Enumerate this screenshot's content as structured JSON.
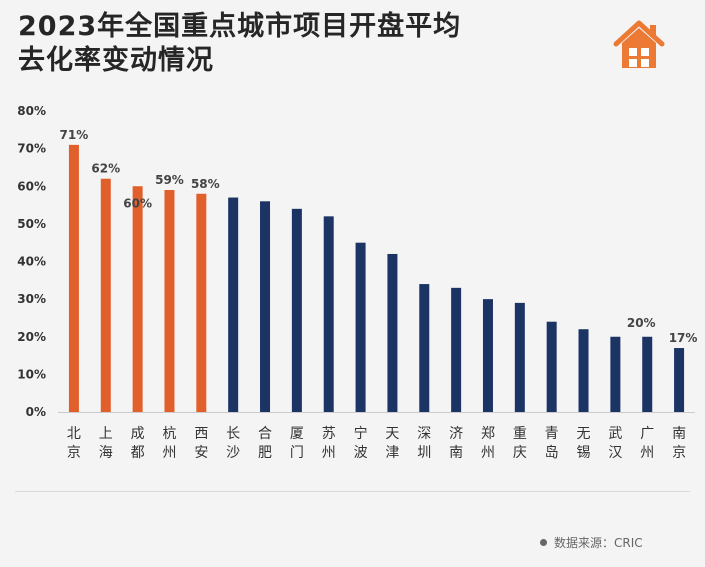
{
  "header": {
    "title_line1": "2023年全国重点城市项目开盘平均",
    "title_line2": "去化率变动情况"
  },
  "footer": {
    "source_label": "数据来源：CRIC"
  },
  "logo": {
    "icon": "house-icon",
    "color": "#ec7a34"
  },
  "colors": {
    "highlight": "#e05f2a",
    "normal": "#1b3464",
    "axis": "#cccccc"
  },
  "chart_data": {
    "type": "bar",
    "title": "2023年全国重点城市项目开盘平均去化率变动情况",
    "xlabel": "",
    "ylabel": "",
    "ylim": [
      0,
      80
    ],
    "yticks": [
      0,
      10,
      20,
      30,
      40,
      50,
      60,
      70,
      80
    ],
    "ytick_labels": [
      "0%",
      "10%",
      "20%",
      "30%",
      "40%",
      "50%",
      "60%",
      "70%",
      "80%"
    ],
    "grid": false,
    "categories": [
      "北京",
      "上海",
      "成都",
      "杭州",
      "西安",
      "长沙",
      "合肥",
      "厦门",
      "苏州",
      "宁波",
      "天津",
      "深圳",
      "济南",
      "郑州",
      "重庆",
      "青岛",
      "无锡",
      "武汉",
      "广州",
      "南京"
    ],
    "values": [
      71,
      62,
      60,
      59,
      58,
      57,
      56,
      54,
      52,
      45,
      42,
      34,
      33,
      30,
      29,
      24,
      22,
      20,
      20,
      17
    ],
    "highlighted": [
      true,
      true,
      true,
      true,
      true,
      false,
      false,
      false,
      false,
      false,
      false,
      false,
      false,
      false,
      false,
      false,
      false,
      false,
      false,
      false
    ],
    "data_labels": [
      {
        "index": 0,
        "text": "71%"
      },
      {
        "index": 1,
        "text": "62%"
      },
      {
        "index": 2,
        "text": "60%"
      },
      {
        "index": 3,
        "text": "59%"
      },
      {
        "index": 4,
        "text": "58%"
      },
      {
        "index": 18,
        "text": "20%"
      },
      {
        "index": 19,
        "text": "17%"
      }
    ]
  }
}
